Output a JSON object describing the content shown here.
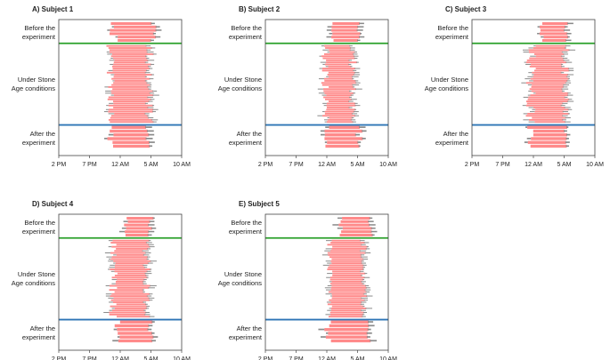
{
  "figure": {
    "row_labels": [
      "Before the experiment",
      "Under Stone Age conditions",
      "After the experiment"
    ],
    "x_ticks": [
      "2 PM",
      "7 PM",
      "12 AM",
      "5 AM",
      "10 AM"
    ]
  },
  "colors": {
    "sleep_bar": "#ff8a8a",
    "gray_bar": "#8a8a8a",
    "green_line": "#2aa02a",
    "blue_line": "#2e75b6"
  },
  "chart_data": [
    {
      "type": "gantt",
      "title": "A) Subject 1",
      "x_axis": {
        "ticks": [
          "2 PM",
          "7 PM",
          "12 AM",
          "5 AM",
          "10 AM"
        ],
        "range_hours": [
          14,
          36
        ]
      },
      "row_labels": [
        "Before the experiment",
        "Under Stone Age conditions",
        "After the experiment"
      ],
      "before": {
        "nights": 6,
        "onset": [
          22.0,
          25.0
        ],
        "offset": [
          30.5,
          31.5
        ]
      },
      "under": {
        "nights": 38,
        "onset": [
          22.5,
          24.0
        ],
        "offset": [
          29.5,
          31.0
        ]
      },
      "after": {
        "nights": 6,
        "onset": [
          22.5,
          24.5
        ],
        "offset": [
          29.5,
          30.5
        ]
      }
    },
    {
      "type": "gantt",
      "title": "B) Subject 2",
      "x_axis": {
        "ticks": [
          "2 PM",
          "7 PM",
          "12 AM",
          "5 AM",
          "10 AM"
        ],
        "range_hours": [
          14,
          36
        ]
      },
      "row_labels": [
        "Before the experiment",
        "Under Stone Age conditions",
        "After the experiment"
      ],
      "before": {
        "nights": 6,
        "onset": [
          25.5,
          26.5
        ],
        "offset": [
          30.5,
          31.5
        ]
      },
      "under": {
        "nights": 38,
        "onset": [
          24.0,
          25.5
        ],
        "offset": [
          29.0,
          30.5
        ]
      },
      "after": {
        "nights": 6,
        "onset": [
          24.5,
          25.5
        ],
        "offset": [
          30.0,
          31.5
        ]
      }
    },
    {
      "type": "gantt",
      "title": "C) Subject 3",
      "x_axis": {
        "ticks": [
          "2 PM",
          "7 PM",
          "12 AM",
          "5 AM",
          "10 AM"
        ],
        "range_hours": [
          14,
          36
        ]
      },
      "row_labels": [
        "Before the experiment",
        "Under Stone Age conditions",
        "After the experiment"
      ],
      "before": {
        "nights": 6,
        "onset": [
          26.0,
          27.0
        ],
        "offset": [
          30.5,
          31.5
        ]
      },
      "under": {
        "nights": 38,
        "onset": [
          23.5,
          25.5
        ],
        "offset": [
          30.0,
          31.5
        ]
      },
      "after": {
        "nights": 6,
        "onset": [
          23.5,
          25.0
        ],
        "offset": [
          30.5,
          31.5
        ]
      }
    },
    {
      "type": "gantt",
      "title": "D) Subject 4",
      "x_axis": {
        "ticks": [
          "2 PM",
          "7 PM",
          "12 AM",
          "5 AM",
          "10 AM"
        ],
        "range_hours": [
          14,
          36
        ]
      },
      "row_labels": [
        "Before the experiment",
        "Under Stone Age conditions",
        "After the experiment"
      ],
      "before": {
        "nights": 6,
        "onset": [
          25.5,
          26.5
        ],
        "offset": [
          30.0,
          31.0
        ]
      },
      "under": {
        "nights": 38,
        "onset": [
          23.0,
          24.5
        ],
        "offset": [
          29.0,
          30.5
        ]
      },
      "after": {
        "nights": 6,
        "onset": [
          24.0,
          25.0
        ],
        "offset": [
          30.0,
          31.0
        ]
      }
    },
    {
      "type": "gantt",
      "title": "E) Subject 5",
      "x_axis": {
        "ticks": [
          "2 PM",
          "7 PM",
          "12 AM",
          "5 AM",
          "10 AM"
        ],
        "range_hours": [
          14,
          36
        ]
      },
      "row_labels": [
        "Before the experiment",
        "Under Stone Age conditions",
        "After the experiment"
      ],
      "before": {
        "nights": 6,
        "onset": [
          27.0,
          28.0
        ],
        "offset": [
          32.5,
          33.5
        ]
      },
      "under": {
        "nights": 38,
        "onset": [
          25.0,
          26.0
        ],
        "offset": [
          31.0,
          32.5
        ]
      },
      "after": {
        "nights": 6,
        "onset": [
          24.0,
          26.0
        ],
        "offset": [
          32.0,
          33.0
        ]
      }
    }
  ]
}
